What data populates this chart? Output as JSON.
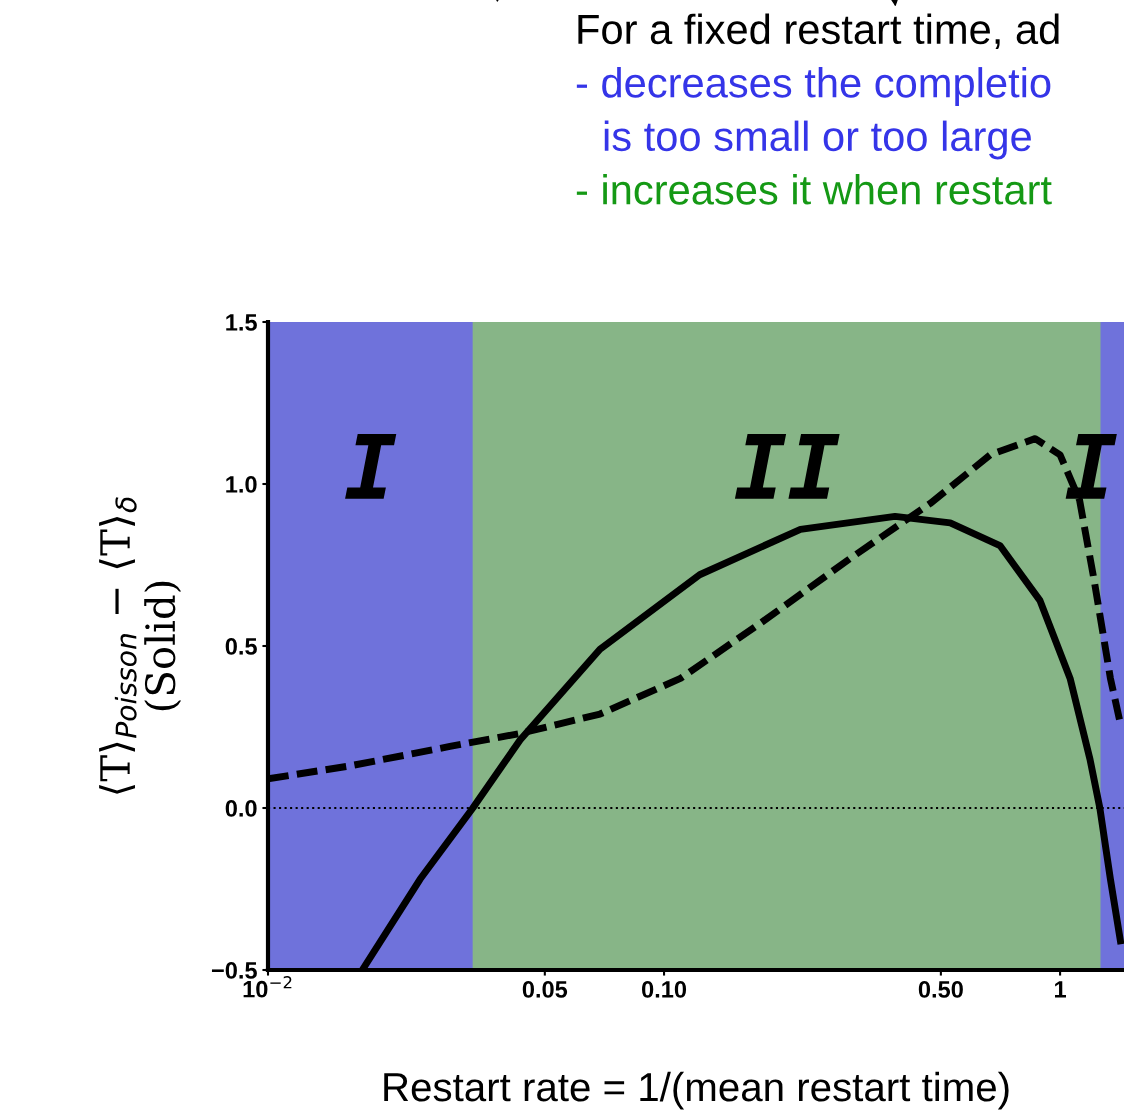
{
  "chart_data": {
    "type": "line",
    "ylabel": "⟨T⟩$_{Poisson}$ − ⟨T⟩$_{δ}$\n(Solid)",
    "xlabel": "Restart rate = 1/(mean restart time)",
    "log": "x",
    "xlim": [
      0.01,
      1.45
    ],
    "ylim": [
      -0.5,
      1.5
    ],
    "xticks": [
      {
        "value": 0.01,
        "label": "10$^{−2}$"
      },
      {
        "value": 0.05,
        "label": "0.05"
      },
      {
        "value": 0.1,
        "label": "0.10"
      },
      {
        "value": 0.5,
        "label": "0.50"
      },
      {
        "value": 1,
        "label": "1"
      }
    ],
    "yticks": [
      {
        "value": -0.5,
        "label": "−0.5"
      },
      {
        "value": 0,
        "label": "0.0"
      },
      {
        "value": 0.5,
        "label": "0.5"
      },
      {
        "value": 1.0,
        "label": "1.0"
      },
      {
        "value": 1.5,
        "label": "1.5"
      }
    ],
    "grid": false,
    "legend": false,
    "marker": "none",
    "series": [
      {
        "color": "#000000",
        "line_style": "solid",
        "x": [
          0.0173,
          0.0242,
          0.0329,
          0.0433,
          0.0689,
          0.123,
          0.221,
          0.383,
          0.528,
          0.705,
          0.89,
          1.06,
          1.19,
          1.26,
          1.34,
          1.42
        ],
        "values": [
          -0.5,
          -0.22,
          0.0,
          0.21,
          0.49,
          0.72,
          0.86,
          0.9,
          0.88,
          0.81,
          0.64,
          0.4,
          0.15,
          0.0,
          -0.22,
          -0.41
        ]
      },
      {
        "color": "#000000",
        "line_style": "dashed",
        "x": [
          0.01,
          0.0161,
          0.0288,
          0.0433,
          0.0689,
          0.11,
          0.175,
          0.295,
          0.47,
          0.666,
          0.865,
          1.0,
          1.12,
          1.22,
          1.34,
          1.42
        ],
        "values": [
          0.09,
          0.13,
          0.19,
          0.23,
          0.29,
          0.4,
          0.57,
          0.77,
          0.94,
          1.09,
          1.14,
          1.09,
          0.95,
          0.7,
          0.4,
          0.26
        ]
      }
    ],
    "ref_lines": [
      {
        "axis": "y",
        "value": 0,
        "color": "#000000",
        "line_style": "dotted"
      }
    ],
    "bands": [
      {
        "axis": "x",
        "from": 0.01,
        "to": 0.033,
        "label": "I",
        "color": "#6f72db"
      },
      {
        "axis": "x",
        "from": 0.033,
        "to": 1.27,
        "label": "II",
        "color": "#87b587"
      },
      {
        "axis": "x",
        "from": 1.27,
        "to": 1.45,
        "label": "I",
        "color": "#6f72db"
      }
    ],
    "annotations": [
      "For a fixed restart time, ad",
      "- decreases the completio",
      "is too small or too large",
      "- increases it when restart"
    ]
  }
}
